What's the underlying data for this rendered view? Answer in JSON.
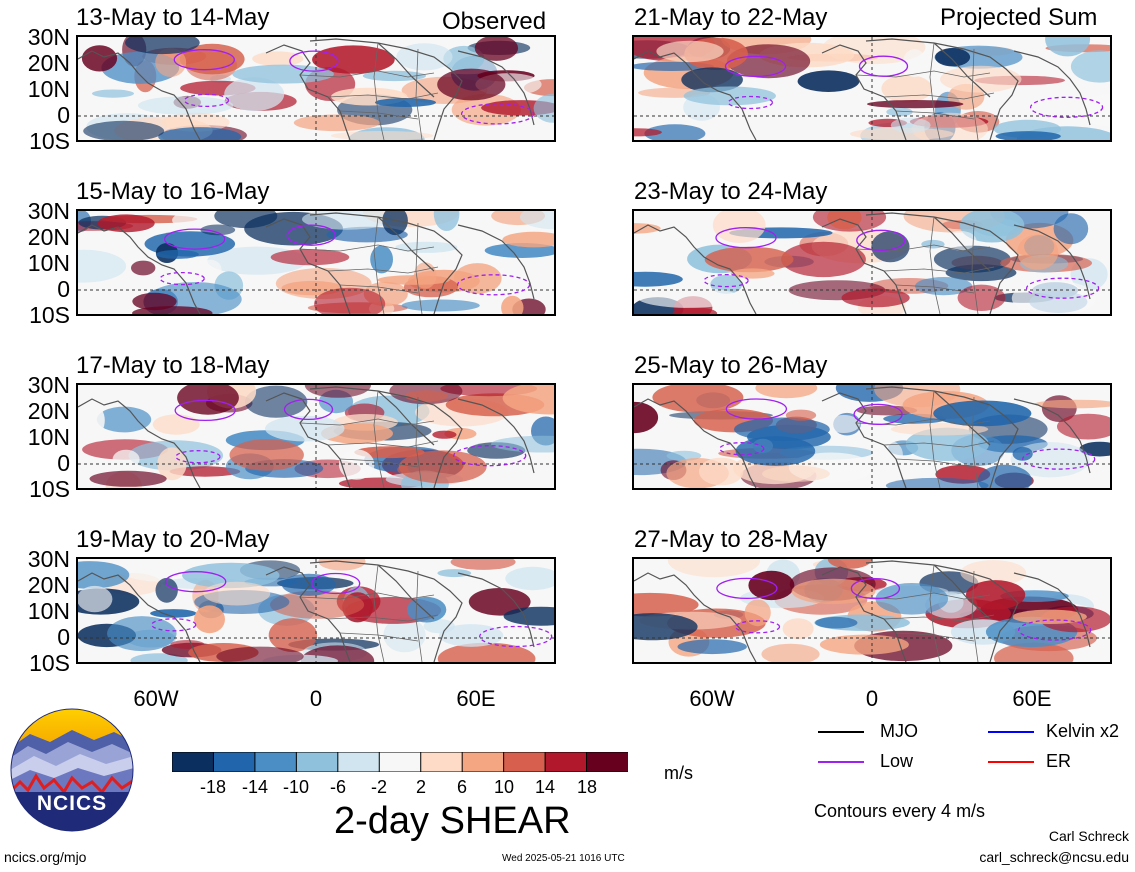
{
  "column_labels": {
    "left": "Observed",
    "right": "Projected Sum"
  },
  "panels": [
    {
      "title": "13-May to 14-May"
    },
    {
      "title": "21-May to 22-May"
    },
    {
      "title": "15-May to 16-May"
    },
    {
      "title": "23-May to 24-May"
    },
    {
      "title": "17-May to 18-May"
    },
    {
      "title": "25-May to 26-May"
    },
    {
      "title": "19-May to 20-May"
    },
    {
      "title": "27-May to 28-May"
    }
  ],
  "lat_ticks": [
    "30N",
    "20N",
    "10N",
    "0",
    "10S"
  ],
  "lon_ticks": [
    "60W",
    "0",
    "60E"
  ],
  "colorbar": {
    "ticks": [
      "-18",
      "-14",
      "-10",
      "-6",
      "-2",
      "2",
      "6",
      "10",
      "14",
      "18"
    ],
    "colors": [
      "#0b2f5e",
      "#2166ac",
      "#4a8ec5",
      "#8fc1dd",
      "#d1e5f0",
      "#f7f7f7",
      "#fddbc7",
      "#f4a582",
      "#d6604d",
      "#b2182b",
      "#67001f"
    ],
    "units": "m/s",
    "title": "2-day SHEAR"
  },
  "legend": {
    "items": [
      {
        "label": "MJO",
        "color": "#000000"
      },
      {
        "label": "Kelvin x2",
        "color": "#0000ff"
      },
      {
        "label": "Low",
        "color": "#a020f0"
      },
      {
        "label": "ER",
        "color": "#ff0000"
      }
    ],
    "note": "Contours every 4 m/s"
  },
  "logo": {
    "text": "NCICS"
  },
  "footer": {
    "url": "ncics.org/mjo",
    "timestamp": "Wed 2025-05-21 1016 UTC",
    "author": "Carl Schreck",
    "email": "carl_schreck@ncsu.edu"
  }
}
